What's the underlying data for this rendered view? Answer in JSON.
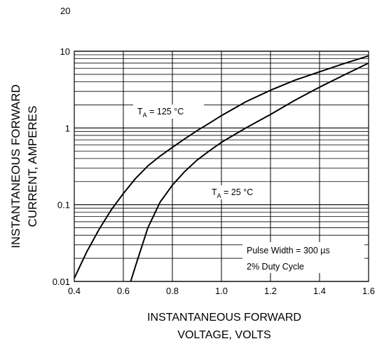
{
  "page_number": "20",
  "chart_data": {
    "type": "line",
    "xlabel_lines": [
      "INSTANTANEOUS FORWARD",
      "VOLTAGE, VOLTS"
    ],
    "ylabel_lines": [
      "INSTANTANEOUS FORWARD",
      "CURRENT, AMPERES"
    ],
    "xlim": [
      0.4,
      1.6
    ],
    "ylim": [
      0.01,
      10
    ],
    "yscale": "log",
    "grid": true,
    "x_ticks": [
      0.4,
      0.6,
      0.8,
      1.0,
      1.2,
      1.4,
      1.6
    ],
    "x_tick_labels": [
      "0.4",
      "0.6",
      "0.8",
      "1.0",
      "1.2",
      "1.4",
      "1.6"
    ],
    "y_ticks": [
      0.01,
      0.1,
      1,
      10
    ],
    "y_tick_labels": [
      "0.01",
      "0.1",
      "1",
      "10"
    ],
    "series": [
      {
        "label_main": "T",
        "label_sub": "A",
        "label_rest": " = 125 °C",
        "x": [
          0.4,
          0.45,
          0.5,
          0.55,
          0.6,
          0.65,
          0.7,
          0.75,
          0.8,
          0.85,
          0.9,
          0.95,
          1.0,
          1.1,
          1.2,
          1.3,
          1.4,
          1.5,
          1.6
        ],
        "y": [
          0.011,
          0.024,
          0.047,
          0.085,
          0.14,
          0.22,
          0.32,
          0.43,
          0.56,
          0.72,
          0.92,
          1.15,
          1.45,
          2.2,
          3.1,
          4.2,
          5.4,
          6.9,
          8.7
        ]
      },
      {
        "label_main": "T",
        "label_sub": "A",
        "label_rest": " = 25 °C",
        "x": [
          0.63,
          0.65,
          0.7,
          0.75,
          0.8,
          0.85,
          0.9,
          0.95,
          1.0,
          1.1,
          1.2,
          1.3,
          1.4,
          1.5,
          1.6
        ],
        "y": [
          0.01,
          0.016,
          0.05,
          0.108,
          0.18,
          0.27,
          0.38,
          0.5,
          0.65,
          1.0,
          1.5,
          2.3,
          3.4,
          4.9,
          7.0
        ]
      }
    ],
    "annotations": [
      "Pulse Width = 300  µs",
      "2% Duty Cycle"
    ]
  }
}
